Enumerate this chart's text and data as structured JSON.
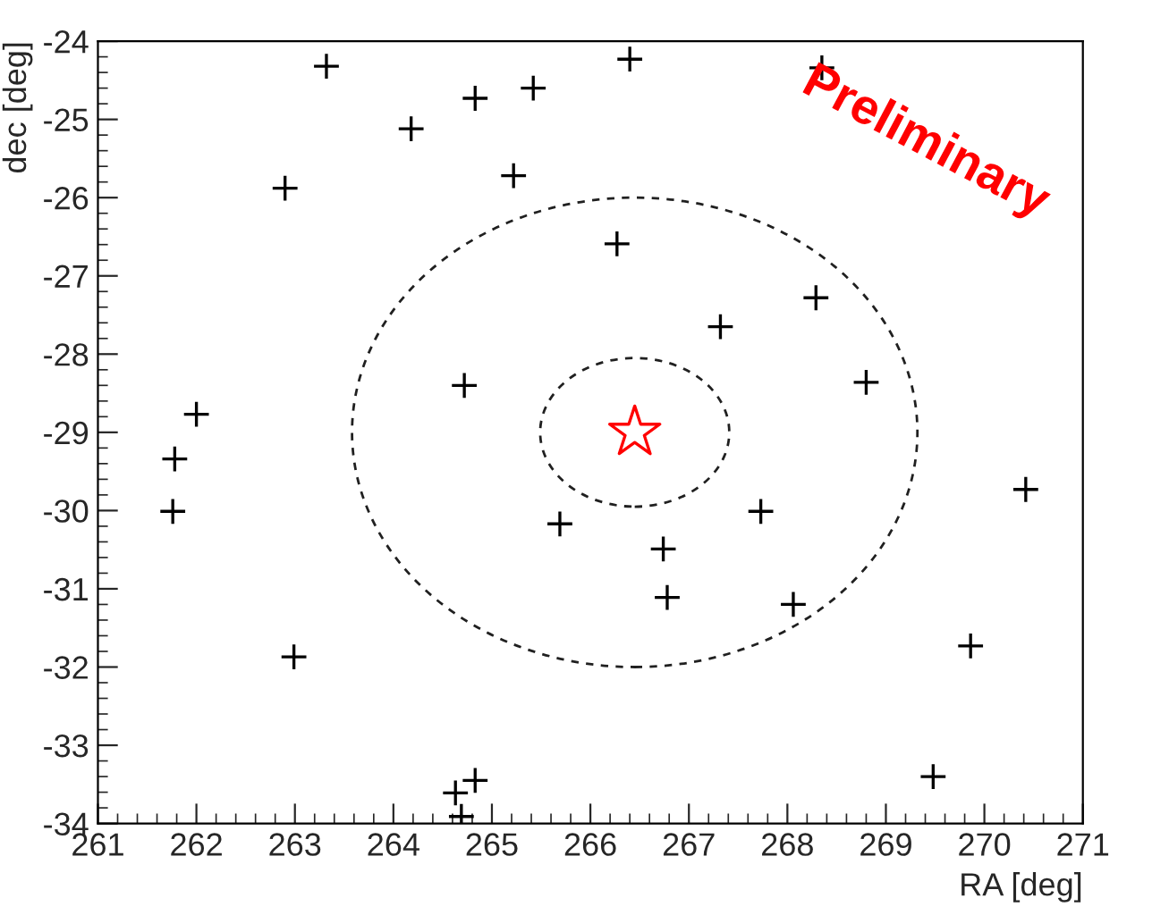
{
  "chart_data": {
    "type": "scatter",
    "xlabel": "RA [deg]",
    "ylabel": "dec [deg]",
    "xlim": [
      261,
      271
    ],
    "ylim": [
      -34,
      -24
    ],
    "xticks": [
      261,
      262,
      263,
      264,
      265,
      266,
      267,
      268,
      269,
      270,
      271
    ],
    "yticks": [
      -34,
      -33,
      -32,
      -31,
      -30,
      -29,
      -28,
      -27,
      -26,
      -25,
      -24
    ],
    "grid": false,
    "annotations": [
      "Preliminary"
    ],
    "series": [
      {
        "type": "scatter",
        "marker": "cross",
        "color": "#000000",
        "x": [
          263.32,
          265.42,
          266.4,
          268.35,
          264.83,
          264.18,
          265.22,
          262.9,
          266.27,
          267.32,
          268.29,
          268.8,
          264.72,
          262.0,
          261.78,
          261.76,
          265.69,
          267.73,
          266.74,
          266.78,
          268.06,
          270.42,
          269.86,
          262.99,
          269.48,
          264.83,
          264.63,
          264.69
        ],
        "values": [
          -24.32,
          -24.6,
          -24.23,
          -24.34,
          -24.73,
          -25.12,
          -25.72,
          -25.88,
          -26.59,
          -27.65,
          -27.28,
          -28.36,
          -28.4,
          -28.77,
          -29.34,
          -30.01,
          -30.17,
          -30.01,
          -30.49,
          -31.11,
          -31.2,
          -29.73,
          -31.73,
          -31.87,
          -33.4,
          -33.45,
          -33.61,
          -33.91
        ]
      },
      {
        "type": "scatter",
        "marker": "star",
        "color": "#ff0000",
        "x": [
          266.45
        ],
        "values": [
          -29.0
        ]
      }
    ]
  }
}
